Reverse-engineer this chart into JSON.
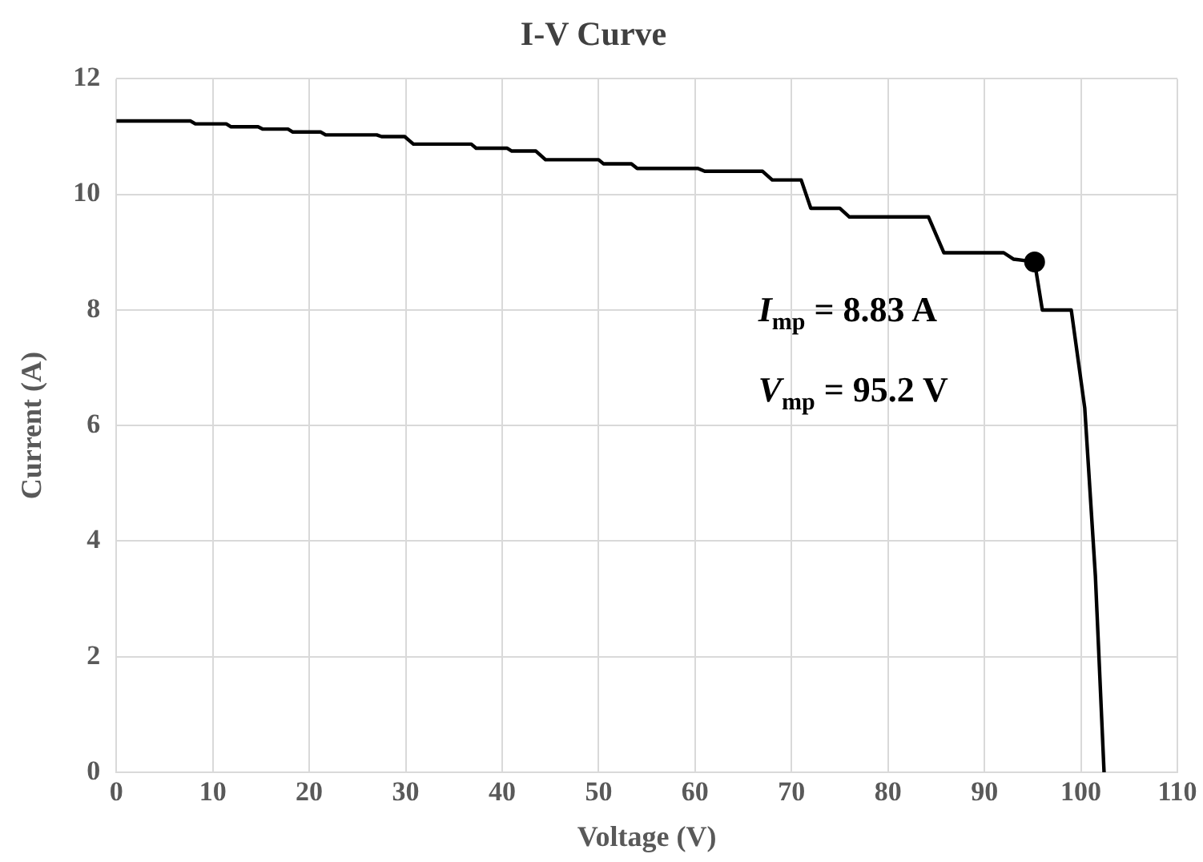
{
  "chart_data": {
    "type": "line",
    "title": "I-V Curve",
    "xlabel": "Voltage (V)",
    "ylabel": "Current (A)",
    "xlim": [
      0,
      110
    ],
    "xticks": [
      0,
      10,
      20,
      30,
      40,
      50,
      60,
      70,
      80,
      90,
      100,
      110
    ],
    "ylim": [
      0,
      12
    ],
    "yticks": [
      0,
      2,
      4,
      6,
      8,
      10,
      12
    ],
    "grid": true,
    "legend": false,
    "series": [
      {
        "color": "#000000",
        "marker": "none",
        "x": [
          0,
          7.7,
          8.2,
          11.4,
          11.9,
          14.7,
          15.2,
          17.8,
          18.3,
          21.2,
          21.7,
          27,
          27.5,
          29.9,
          30.8,
          36.8,
          37.3,
          40.5,
          41,
          43.5,
          44.5,
          50,
          50.5,
          53.4,
          54,
          60.3,
          61,
          67,
          68,
          71,
          72,
          75,
          76,
          84.2,
          85.8,
          92,
          93,
          94.4,
          95.2,
          96,
          99,
          100.4,
          101.5,
          102.4
        ],
        "values": [
          11.27,
          11.27,
          11.22,
          11.22,
          11.17,
          11.17,
          11.13,
          11.13,
          11.08,
          11.08,
          11.03,
          11.03,
          11.0,
          11.0,
          10.87,
          10.87,
          10.8,
          10.8,
          10.75,
          10.75,
          10.6,
          10.6,
          10.53,
          10.53,
          10.45,
          10.45,
          10.4,
          10.4,
          10.25,
          10.25,
          9.76,
          9.76,
          9.61,
          9.61,
          8.99,
          8.99,
          8.88,
          8.85,
          8.83,
          8.0,
          8.0,
          6.3,
          3.4,
          0
        ]
      },
      {
        "type": "scatter",
        "color": "#000000",
        "marker": "circle",
        "x": [
          95.2
        ],
        "values": [
          8.83
        ]
      }
    ],
    "annotations": [
      "I$_{mp}$ = 8.83 A",
      "V$_{mp}$ = 95.2 V"
    ]
  }
}
